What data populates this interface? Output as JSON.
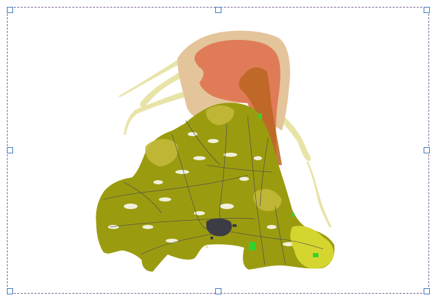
{
  "canvas": {
    "background": "#ffffff",
    "frame_color": "#7a5f8f",
    "handle_color": "#3a78c3"
  },
  "map": {
    "palette": {
      "outer_sand": "#e4c49a",
      "core_orange": "#e07b58",
      "brown_ridge": "#b8651f",
      "olive": "#9b9b10",
      "olive_light": "#c3b93a",
      "yellow_green": "#d5d530",
      "pale_yellow": "#e8e4a8",
      "road_gray": "#4a4a52",
      "city_dark": "#3c3c44",
      "bright_green": "#2fd42f"
    }
  }
}
